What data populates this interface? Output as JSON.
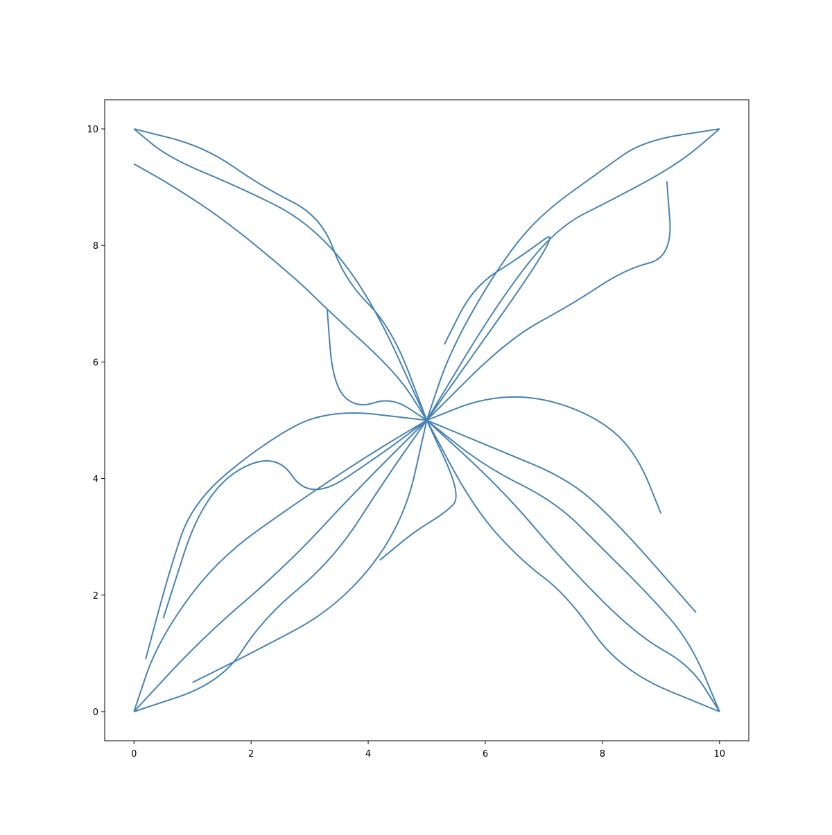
{
  "chart_data": {
    "type": "line",
    "title": "",
    "xlabel": "",
    "ylabel": "",
    "xlim": [
      -0.5,
      10.5
    ],
    "ylim": [
      -0.5,
      10.5
    ],
    "xticks": [
      0,
      2,
      4,
      6,
      8,
      10
    ],
    "yticks": [
      0,
      2,
      4,
      6,
      8,
      10
    ],
    "xtick_labels": [
      "0",
      "2",
      "4",
      "6",
      "8",
      "10"
    ],
    "ytick_labels": [
      "0",
      "2",
      "4",
      "6",
      "8",
      "10"
    ],
    "grid": false,
    "legend": "none",
    "line_color": "#4682b4",
    "description_of_data": "branching random-walk paths from the four corners (0,0), (0,10), (10,10), (10,0) converging at (5,5)",
    "series": [
      {
        "x": [
          0,
          1.2,
          2.6,
          3.8,
          5.0
        ],
        "y": [
          0,
          1.3,
          2.5,
          3.8,
          5.0
        ]
      },
      {
        "x": [
          0,
          0.4,
          1.4,
          2.8,
          4.0,
          5.0
        ],
        "y": [
          0,
          1.2,
          2.6,
          3.6,
          4.4,
          5.0
        ]
      },
      {
        "x": [
          0,
          1.5,
          2.2,
          3.4,
          4.3,
          5.0
        ],
        "y": [
          0,
          0.5,
          1.6,
          2.6,
          4.0,
          5.0
        ]
      },
      {
        "x": [
          0.2,
          0.6,
          1.0,
          2.2,
          3.3,
          5.0
        ],
        "y": [
          0.9,
          2.4,
          3.6,
          4.6,
          5.2,
          5.0
        ]
      },
      {
        "x": [
          0.5,
          1.2,
          2.4,
          3.0,
          4.2,
          5.0
        ],
        "y": [
          1.6,
          3.8,
          4.5,
          3.6,
          4.4,
          5.0
        ]
      },
      {
        "x": [
          1.0,
          2.0,
          3.5,
          4.6,
          5.0
        ],
        "y": [
          0.5,
          1.0,
          1.8,
          3.2,
          5.0
        ]
      },
      {
        "x": [
          0,
          0.6,
          1.8,
          3.0,
          4.0,
          5.0
        ],
        "y": [
          10,
          9.5,
          9.0,
          8.4,
          7.2,
          5.0
        ]
      },
      {
        "x": [
          0,
          1.2,
          2.2,
          3.2,
          3.6,
          4.4,
          5.0
        ],
        "y": [
          10,
          9.7,
          9.0,
          8.5,
          7.4,
          6.6,
          5.0
        ]
      },
      {
        "x": [
          0,
          0.7,
          1.6,
          2.8,
          3.3,
          4.5,
          5.0
        ],
        "y": [
          9.4,
          9.0,
          8.4,
          7.4,
          6.9,
          5.8,
          5.0
        ]
      },
      {
        "x": [
          3.3,
          3.4,
          3.8,
          4.4,
          5.0
        ],
        "y": [
          6.9,
          5.6,
          5.2,
          5.4,
          5.0
        ]
      },
      {
        "x": [
          10,
          9.3,
          8.2,
          7.2,
          6.2,
          5.0
        ],
        "y": [
          10,
          9.4,
          8.8,
          8.3,
          7.0,
          5.0
        ]
      },
      {
        "x": [
          10,
          8.7,
          8.0,
          6.9,
          6.2,
          5.4,
          5.0
        ],
        "y": [
          10,
          9.8,
          9.3,
          8.5,
          7.6,
          6.2,
          5.0
        ]
      },
      {
        "x": [
          9.1,
          9.2,
          8.4,
          7.5,
          6.4,
          5.0
        ],
        "y": [
          9.1,
          7.8,
          7.6,
          7.0,
          6.4,
          5.0
        ]
      },
      {
        "x": [
          5.3,
          5.8,
          6.6,
          7.4,
          5.0
        ],
        "y": [
          6.3,
          7.3,
          7.8,
          8.4,
          5.0
        ]
      },
      {
        "x": [
          10,
          9.5,
          8.6,
          7.4,
          6.3,
          5.0
        ],
        "y": [
          0,
          0.8,
          1.3,
          2.5,
          3.8,
          5.0
        ]
      },
      {
        "x": [
          10,
          9.5,
          8.8,
          8.0,
          7.2,
          6.0,
          5.0
        ],
        "y": [
          0,
          1.2,
          2.0,
          2.8,
          3.6,
          4.2,
          5.0
        ]
      },
      {
        "x": [
          10,
          8.3,
          7.4,
          6.6,
          5.8,
          5.0
        ],
        "y": [
          0,
          0.7,
          2.0,
          2.6,
          3.5,
          5.0
        ]
      },
      {
        "x": [
          9.0,
          8.6,
          8.0,
          7.0,
          6.0,
          5.0
        ],
        "y": [
          3.4,
          4.4,
          5.0,
          5.4,
          5.4,
          5.0
        ]
      },
      {
        "x": [
          9.6,
          8.2,
          7.4,
          6.2,
          5.0
        ],
        "y": [
          1.7,
          3.3,
          4.0,
          4.5,
          5.0
        ]
      },
      {
        "x": [
          4.2,
          4.8,
          5.3,
          5.6,
          5.0
        ],
        "y": [
          2.6,
          3.1,
          3.4,
          3.7,
          5.0
        ]
      }
    ]
  }
}
